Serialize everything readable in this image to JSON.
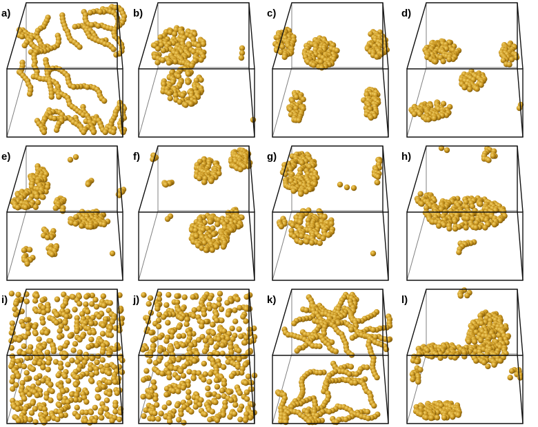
{
  "figure": {
    "panels": [
      {
        "label": "a)",
        "pattern": "network"
      },
      {
        "label": "b)",
        "pattern": "single-cluster"
      },
      {
        "label": "c)",
        "pattern": "four-clusters"
      },
      {
        "label": "d)",
        "pattern": "four-clusters"
      },
      {
        "label": "e)",
        "pattern": "many-small-clusters"
      },
      {
        "label": "f)",
        "pattern": "few-clusters"
      },
      {
        "label": "g)",
        "pattern": "two-clusters"
      },
      {
        "label": "h)",
        "pattern": "slab"
      },
      {
        "label": "i)",
        "pattern": "dispersed"
      },
      {
        "label": "j)",
        "pattern": "dispersed"
      },
      {
        "label": "k)",
        "pattern": "percolating-network"
      },
      {
        "label": "l)",
        "pattern": "slab-and-cluster"
      }
    ],
    "colors": {
      "particle": "#c9951f",
      "particle_highlight": "#f4d36a",
      "particle_shadow": "#7a5608",
      "box_front": "#111111",
      "box_back": "#7f7f7f",
      "background": "#ffffff"
    },
    "grid": {
      "rows": 3,
      "columns": 4
    }
  }
}
